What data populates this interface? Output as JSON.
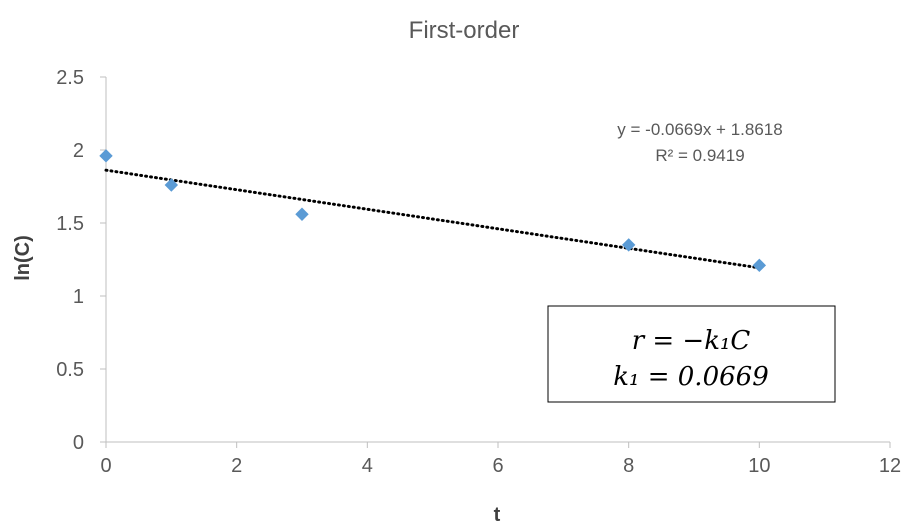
{
  "chart_data": {
    "type": "scatter",
    "title": "First-order",
    "xlabel": "t",
    "ylabel": "ln(C)",
    "xlim": [
      0,
      12
    ],
    "ylim": [
      0,
      2.5
    ],
    "x_ticks": [
      "0",
      "2",
      "4",
      "6",
      "8",
      "10",
      "12"
    ],
    "y_ticks": [
      "0",
      "0.5",
      "1",
      "1.5",
      "2",
      "2.5"
    ],
    "grid": false,
    "series": [
      {
        "points": [
          {
            "x": 0,
            "y": 1.96
          },
          {
            "x": 1,
            "y": 1.76
          },
          {
            "x": 3,
            "y": 1.56
          },
          {
            "x": 8,
            "y": 1.35
          },
          {
            "x": 10,
            "y": 1.21
          }
        ],
        "color": "#5B9BD5",
        "marker": "diamond"
      }
    ],
    "trendline": {
      "type": "linear",
      "slope": -0.0669,
      "intercept": 1.8618,
      "x_range": [
        0,
        10
      ],
      "style": "dotted",
      "color": "#000000",
      "equation_label": "y = -0.0669x + 1.8618",
      "r2_label": "R² = 0.9419"
    },
    "annotation_box": {
      "line1": "r = −k₁C",
      "line2": "k₁ = 0.0669"
    }
  }
}
